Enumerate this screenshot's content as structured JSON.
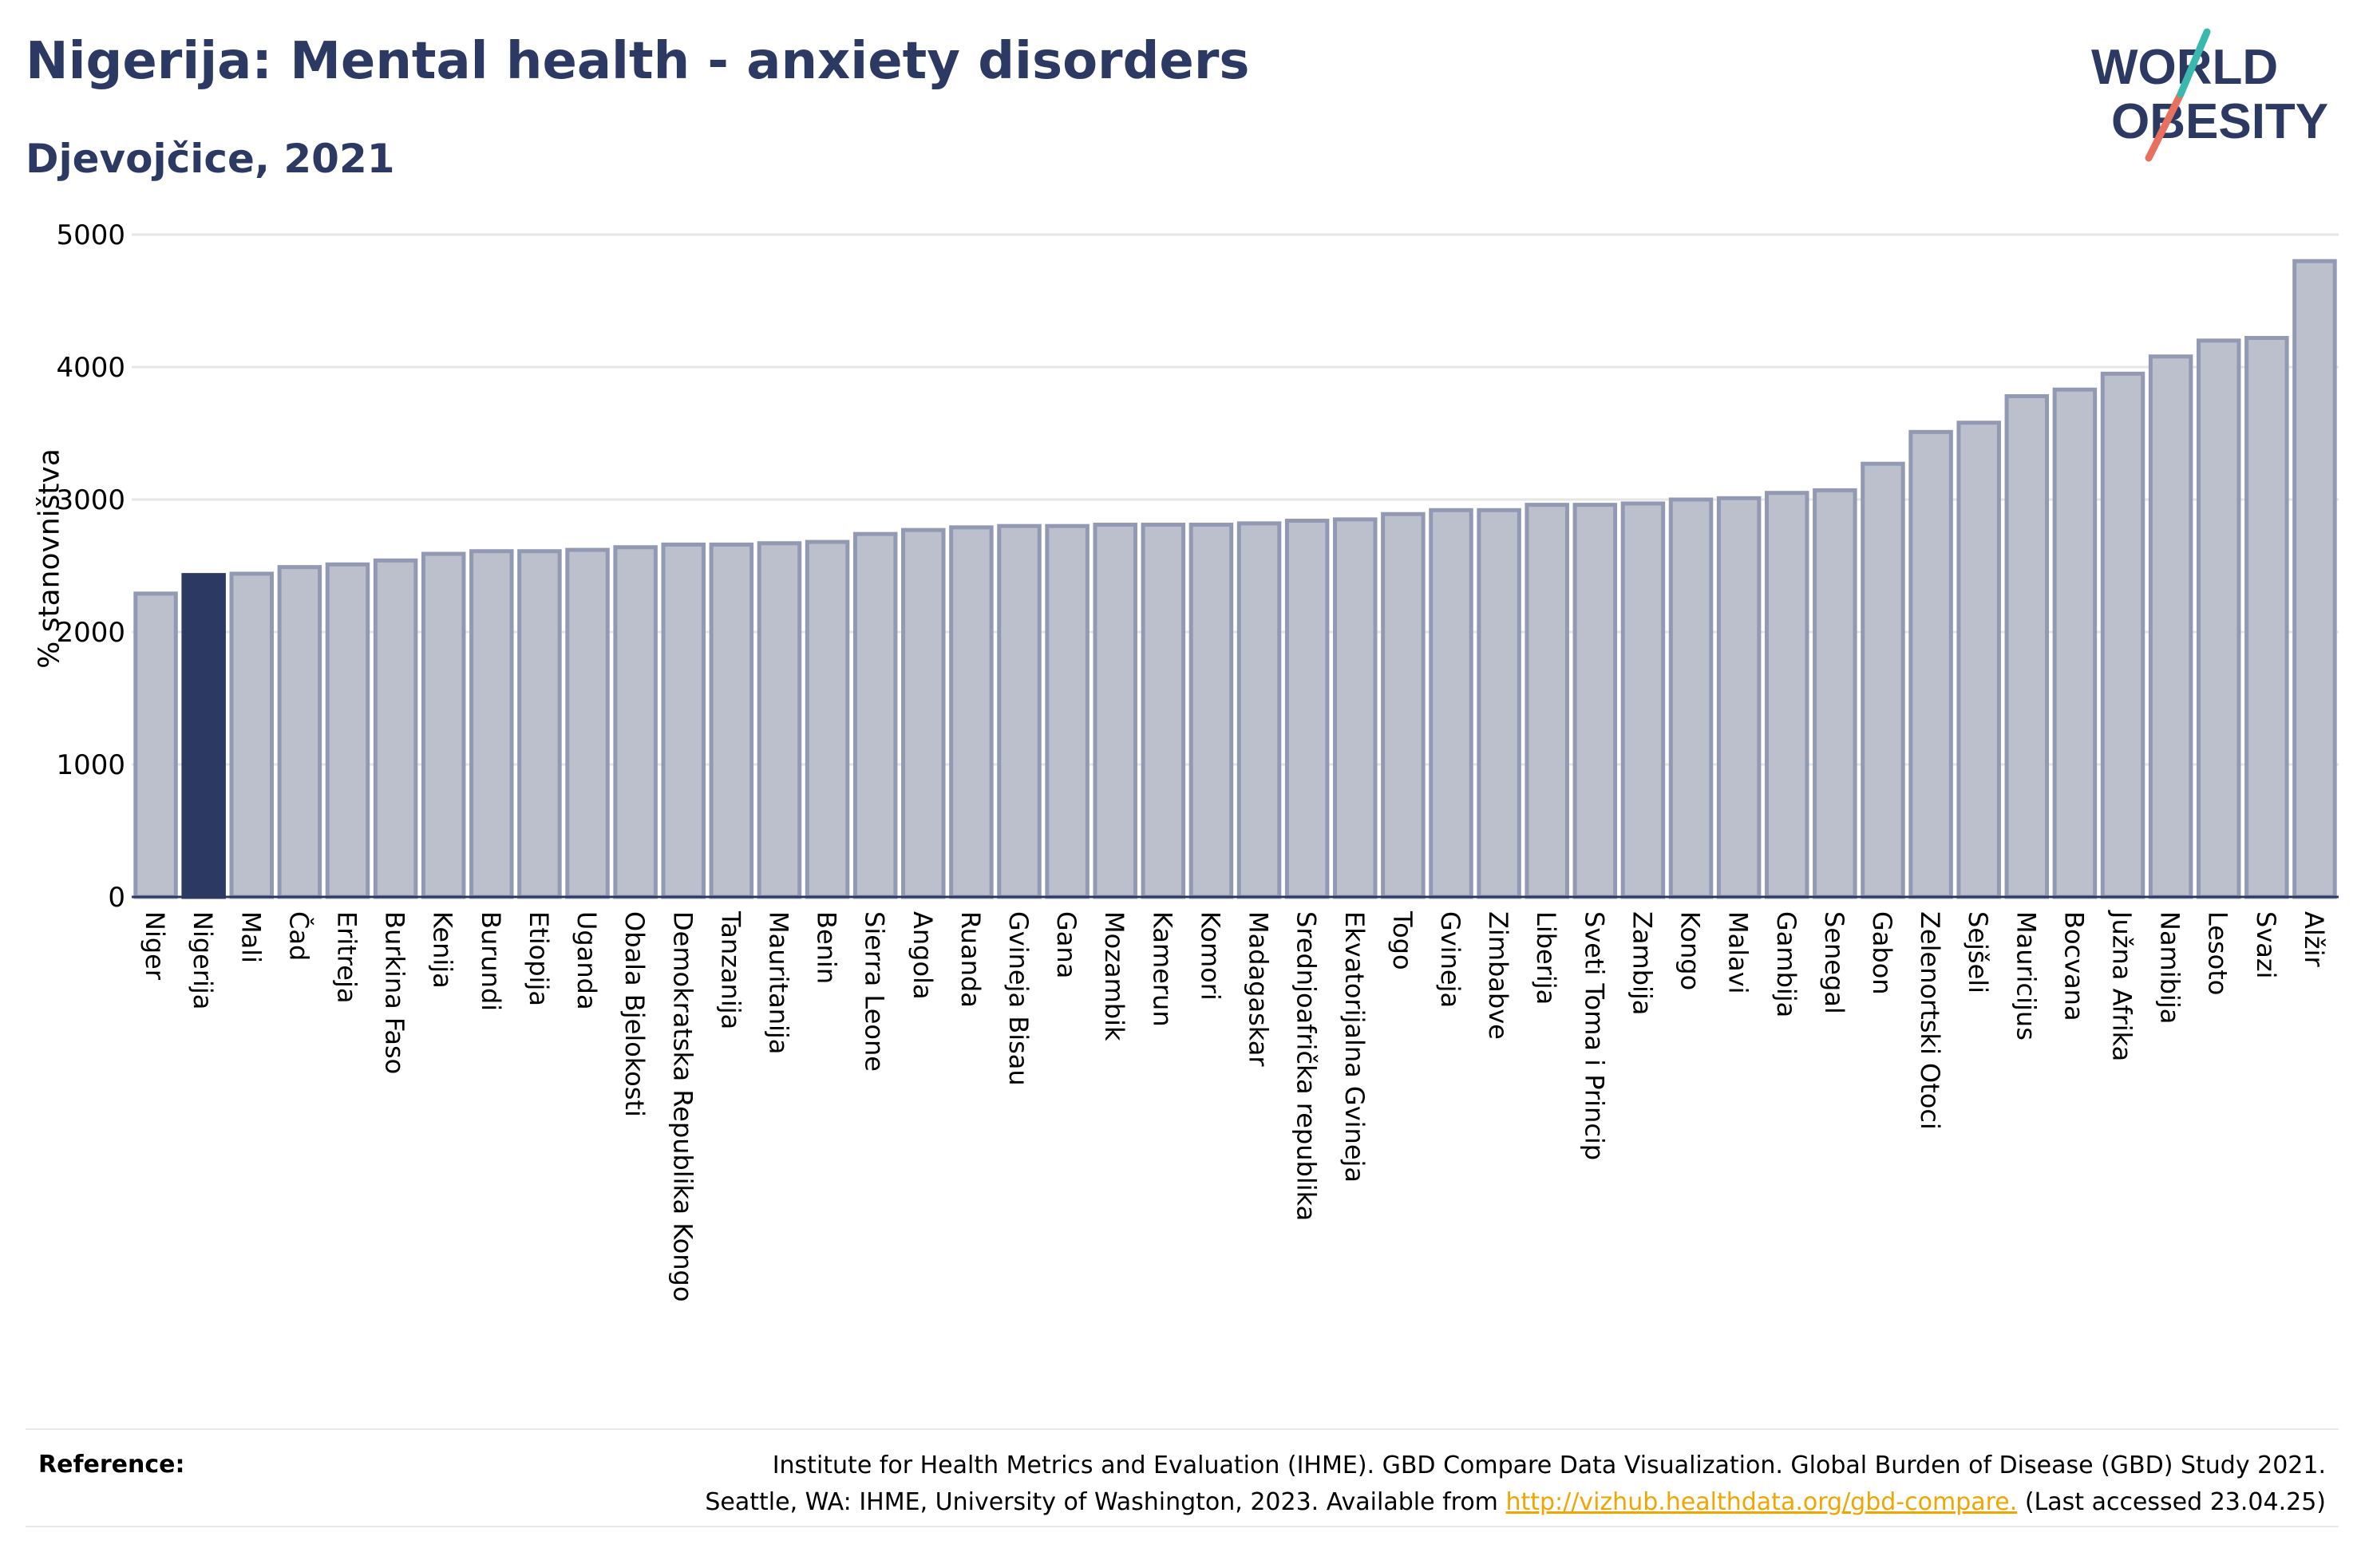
{
  "header": {
    "title": "Nigerija: Mental health - anxiety disorders",
    "subtitle": "Djevojčice, 2021"
  },
  "logo": {
    "line1": "WORLD",
    "line2": "OBESITY"
  },
  "colors": {
    "bar": "#bcc0cd",
    "bar_border": "#9299b2",
    "highlight": "#2c3a63",
    "grid": "#e6e6e6",
    "title": "#2c3a63",
    "link": "#f0a500"
  },
  "chart_data": {
    "type": "bar",
    "ylabel": "% stanovništva",
    "ylim": [
      0,
      5000
    ],
    "yticks": [
      0,
      1000,
      2000,
      3000,
      4000,
      5000
    ],
    "highlight": "Nigerija",
    "categories": [
      "Niger",
      "Nigerija",
      "Mali",
      "Čad",
      "Eritreja",
      "Burkina Faso",
      "Kenija",
      "Burundi",
      "Etiopija",
      "Uganda",
      "Obala Bjelokosti",
      "Demokratska Republika Kongo",
      "Tanzanija",
      "Mauritanija",
      "Benin",
      "Sierra Leone",
      "Angola",
      "Ruanda",
      "Gvineja Bisau",
      "Gana",
      "Mozambik",
      "Kamerun",
      "Komori",
      "Madagaskar",
      "Srednjoafrička republika",
      "Ekvatorijalna Gvineja",
      "Togo",
      "Gvineja",
      "Zimbabve",
      "Liberija",
      "Sveti Toma i Princip",
      "Zambija",
      "Kongo",
      "Malavi",
      "Gambija",
      "Senegal",
      "Gabon",
      "Zelenortski Otoci",
      "Sejšeli",
      "Mauricijus",
      "Bocvana",
      "Južna Afrika",
      "Namibija",
      "Lesoto",
      "Svazi",
      "Alžir"
    ],
    "values": [
      2290,
      2430,
      2440,
      2490,
      2510,
      2540,
      2590,
      2610,
      2610,
      2620,
      2640,
      2660,
      2660,
      2670,
      2680,
      2740,
      2770,
      2790,
      2800,
      2800,
      2810,
      2810,
      2810,
      2820,
      2840,
      2850,
      2890,
      2920,
      2920,
      2960,
      2960,
      2970,
      3000,
      3010,
      3050,
      3070,
      3270,
      3510,
      3580,
      3780,
      3830,
      3950,
      4080,
      4200,
      4220,
      4800
    ]
  },
  "reference": {
    "label": "Reference:",
    "line1": "Institute for Health Metrics and Evaluation (IHME). GBD Compare Data Visualization. Global Burden of Disease (GBD) Study 2021.",
    "line2_pre": "Seattle, WA: IHME, University of Washington, 2023. Available from ",
    "link": "http://vizhub.healthdata.org/gbd-compare.",
    "line2_post": " (Last accessed 23.04.25)"
  }
}
